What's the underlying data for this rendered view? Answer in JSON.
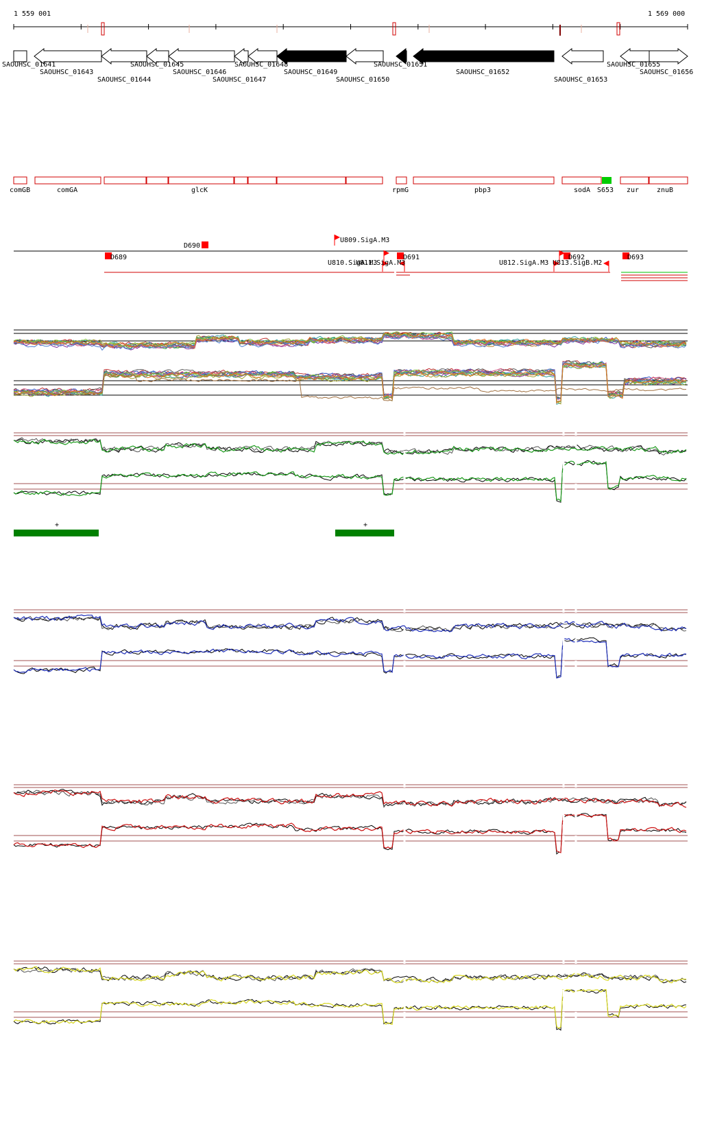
{
  "coordinates": {
    "start": "1 559 001",
    "end": "1 569 000"
  },
  "colors": {
    "feature_outline": "#d00000",
    "promoter_flag": "#ff0000",
    "green_block": "#008000",
    "s653_block": "#00cc00",
    "track_green": "#1b9a1b",
    "track_blue": "#1f2fb8",
    "track_red": "#cc1010",
    "track_yellow": "#d8d820",
    "threshold_line": "#a05050"
  },
  "genes": [
    {
      "name": "SAOUHSC_01641",
      "dir": "right",
      "filled": false
    },
    {
      "name": "SAOUHSC_01643",
      "dir": "left",
      "filled": false
    },
    {
      "name": "SAOUHSC_01644",
      "dir": "left",
      "filled": false
    },
    {
      "name": "SAOUHSC_01645",
      "dir": "left",
      "filled": false
    },
    {
      "name": "SAOUHSC_01646",
      "dir": "left",
      "filled": false
    },
    {
      "name": "SAOUHSC_01647",
      "dir": "left",
      "filled": false
    },
    {
      "name": "SAOUHSC_01648",
      "dir": "left",
      "filled": false
    },
    {
      "name": "SAOUHSC_01649",
      "dir": "left",
      "filled": true
    },
    {
      "name": "SAOUHSC_01650",
      "dir": "left",
      "filled": false
    },
    {
      "name": "SAOUHSC_01651",
      "dir": "left",
      "filled": true
    },
    {
      "name": "SAOUHSC_01652",
      "dir": "left",
      "filled": true
    },
    {
      "name": "SAOUHSC_01653",
      "dir": "left",
      "filled": false
    },
    {
      "name": "SAOUHSC_01655",
      "dir": "left",
      "filled": false
    },
    {
      "name": "SAOUHSC_01656",
      "dir": "right",
      "filled": false
    }
  ],
  "features": [
    "comGB",
    "comGA",
    "glcK",
    "rpmG",
    "pbp3",
    "sodA",
    "S653",
    "zur",
    "znuB"
  ],
  "regulatory_labels": [
    "D689",
    "D690",
    "U809.SigA.M3",
    "U810.SigA.M3",
    "U811.SigA.M3",
    "D691",
    "U812.SigA.M3",
    "U813.SigB.M2",
    "D692",
    "D693"
  ],
  "plus_markers": [
    "+",
    "+"
  ]
}
